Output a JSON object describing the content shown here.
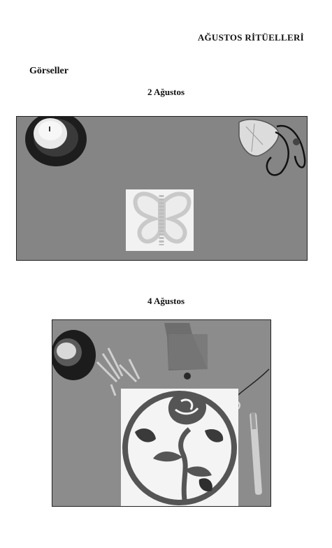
{
  "header": {
    "title": "AĞUSTOS RİTÜELLERİ"
  },
  "section": {
    "heading": "Görseller"
  },
  "photos": [
    {
      "caption": "2 Ağustos"
    },
    {
      "caption": "4 Ağustos"
    }
  ]
}
